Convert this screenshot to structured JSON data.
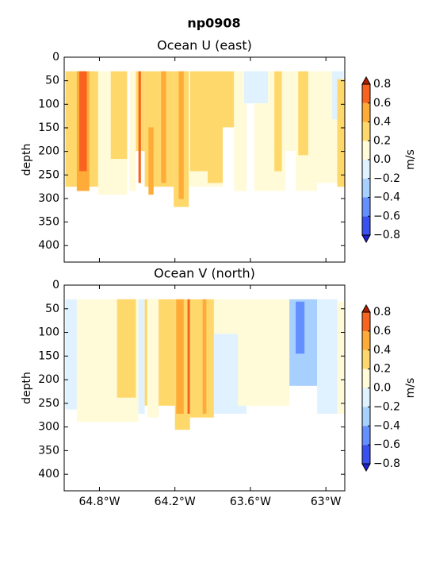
{
  "title": "np0908",
  "chart_data": [
    {
      "type": "contour",
      "title": "Ocean U (east)",
      "ylabel": "depth",
      "xlim": [
        -65.08,
        -62.85
      ],
      "ylim": [
        435,
        0
      ],
      "yticks": [
        0,
        50,
        100,
        150,
        200,
        250,
        300,
        350,
        400
      ],
      "xticks": [
        -64.8,
        -64.2,
        -63.6,
        -63.0
      ],
      "colorbar": {
        "label": "m/s",
        "ticks": [
          {
            "value": -0.8,
            "label": "−0.8"
          },
          {
            "value": -0.6,
            "label": "−0.6"
          },
          {
            "value": -0.4,
            "label": "−0.4"
          },
          {
            "value": -0.2,
            "label": "−0.2"
          },
          {
            "value": 0,
            "label": "0.0"
          },
          0.2,
          0.4,
          0.6,
          0.8
        ],
        "colors": [
          "#3a50f0",
          "#6490ff",
          "#a8d0ff",
          "#e0f1ff",
          "#fffbd8",
          "#ffd86c",
          "#ffab38",
          "#f86420"
        ],
        "under": "#2020d0",
        "over": "#b02000"
      },
      "cells": [
        {
          "lon": [
            -65.07,
            -64.81
          ],
          "depth": [
            30,
            275
          ],
          "value": 0.3
        },
        {
          "lon": [
            -64.98,
            -64.88
          ],
          "depth": [
            30,
            284
          ],
          "value": 0.5
        },
        {
          "lon": [
            -64.96,
            -64.9
          ],
          "depth": [
            30,
            242
          ],
          "value": 0.7
        },
        {
          "lon": [
            -64.81,
            -64.58
          ],
          "depth": [
            30,
            292
          ],
          "value": 0.1
        },
        {
          "lon": [
            -64.71,
            -64.58
          ],
          "depth": [
            30,
            216
          ],
          "value": 0.3
        },
        {
          "lon": [
            -64.56,
            -64.51
          ],
          "depth": [
            30,
            284
          ],
          "value": 0.1
        },
        {
          "lon": [
            -64.51,
            -64.44
          ],
          "depth": [
            30,
            199
          ],
          "value": 0.3
        },
        {
          "lon": [
            -64.49,
            -64.47
          ],
          "depth": [
            30,
            267
          ],
          "value": 0.7
        },
        {
          "lon": [
            -64.44,
            -64.21
          ],
          "depth": [
            30,
            275
          ],
          "value": 0.3
        },
        {
          "lon": [
            -64.41,
            -64.37
          ],
          "depth": [
            149,
            292
          ],
          "value": 0.5
        },
        {
          "lon": [
            -64.31,
            -64.27
          ],
          "depth": [
            30,
            267
          ],
          "value": 0.5
        },
        {
          "lon": [
            -64.21,
            -64.09
          ],
          "depth": [
            30,
            318
          ],
          "value": 0.3
        },
        {
          "lon": [
            -64.17,
            -64.13
          ],
          "depth": [
            30,
            301
          ],
          "value": 0.5
        },
        {
          "lon": [
            -64.09,
            -63.82
          ],
          "depth": [
            30,
            275
          ],
          "value": 0.1
        },
        {
          "lon": [
            -64.08,
            -63.94
          ],
          "depth": [
            30,
            242
          ],
          "value": 0.3
        },
        {
          "lon": [
            -63.94,
            -63.82
          ],
          "depth": [
            30,
            267
          ],
          "value": 0.3
        },
        {
          "lon": [
            -63.82,
            -63.73
          ],
          "depth": [
            30,
            149
          ],
          "value": 0.3
        },
        {
          "lon": [
            -63.73,
            -63.63
          ],
          "depth": [
            30,
            284
          ],
          "value": 0.1
        },
        {
          "lon": [
            -63.65,
            -63.46
          ],
          "depth": [
            30,
            98
          ],
          "value": -0.1
        },
        {
          "lon": [
            -63.57,
            -63.32
          ],
          "depth": [
            98,
            284
          ],
          "value": 0.1
        },
        {
          "lon": [
            -63.46,
            -63.24
          ],
          "depth": [
            30,
            199
          ],
          "value": 0.1
        },
        {
          "lon": [
            -63.41,
            -63.35
          ],
          "depth": [
            30,
            242
          ],
          "value": 0.3
        },
        {
          "lon": [
            -63.24,
            -63.07
          ],
          "depth": [
            30,
            284
          ],
          "value": 0.1
        },
        {
          "lon": [
            -63.22,
            -63.14
          ],
          "depth": [
            30,
            208
          ],
          "value": 0.3
        },
        {
          "lon": [
            -63.07,
            -62.91
          ],
          "depth": [
            30,
            267
          ],
          "value": 0.1
        },
        {
          "lon": [
            -62.95,
            -62.86
          ],
          "depth": [
            30,
            132
          ],
          "value": -0.1
        },
        {
          "lon": [
            -62.91,
            -62.84
          ],
          "depth": [
            47,
            275
          ],
          "value": 0.3
        }
      ]
    },
    {
      "type": "contour",
      "title": "Ocean V (north)",
      "ylabel": "depth",
      "xlim": [
        -65.08,
        -62.85
      ],
      "ylim": [
        435,
        0
      ],
      "yticks": [
        0,
        50,
        100,
        150,
        200,
        250,
        300,
        350,
        400
      ],
      "xticks": [
        {
          "value": -64.8,
          "label": "64.8°W"
        },
        {
          "value": -64.2,
          "label": "64.2°W"
        },
        {
          "value": -63.6,
          "label": "63.6°W"
        },
        {
          "value": -63.0,
          "label": "63°W"
        }
      ],
      "colorbar": {
        "label": "m/s",
        "ticks": [
          {
            "value": -0.8,
            "label": "−0.8"
          },
          {
            "value": -0.6,
            "label": "−0.6"
          },
          {
            "value": -0.4,
            "label": "−0.4"
          },
          {
            "value": -0.2,
            "label": "−0.2"
          },
          {
            "value": 0,
            "label": "0.0"
          },
          0.2,
          0.4,
          0.6,
          0.8
        ],
        "colors": [
          "#3a50f0",
          "#6490ff",
          "#a8d0ff",
          "#e0f1ff",
          "#fffbd8",
          "#ffd86c",
          "#ffab38",
          "#f86420"
        ],
        "under": "#2020d0",
        "over": "#b02000"
      },
      "cells": [
        {
          "lon": [
            -65.07,
            -64.98
          ],
          "depth": [
            30,
            263
          ],
          "value": -0.1
        },
        {
          "lon": [
            -64.98,
            -64.81
          ],
          "depth": [
            30,
            289
          ],
          "value": 0.1
        },
        {
          "lon": [
            -64.81,
            -64.49
          ],
          "depth": [
            30,
            289
          ],
          "value": 0.1
        },
        {
          "lon": [
            -64.66,
            -64.51
          ],
          "depth": [
            30,
            238
          ],
          "value": 0.3
        },
        {
          "lon": [
            -64.49,
            -64.44
          ],
          "depth": [
            30,
            272
          ],
          "value": -0.1
        },
        {
          "lon": [
            -64.44,
            -64.2
          ],
          "depth": [
            30,
            255
          ],
          "value": 0.3
        },
        {
          "lon": [
            -64.42,
            -64.33
          ],
          "depth": [
            30,
            280
          ],
          "value": 0.1
        },
        {
          "lon": [
            -64.2,
            -64.08
          ],
          "depth": [
            30,
            306
          ],
          "value": 0.3
        },
        {
          "lon": [
            -64.19,
            -64.13
          ],
          "depth": [
            30,
            272
          ],
          "value": 0.5
        },
        {
          "lon": [
            -64.1,
            -64.08
          ],
          "depth": [
            30,
            272
          ],
          "value": 0.7
        },
        {
          "lon": [
            -64.08,
            -63.89
          ],
          "depth": [
            30,
            280
          ],
          "value": 0.3
        },
        {
          "lon": [
            -63.98,
            -63.95
          ],
          "depth": [
            30,
            272
          ],
          "value": 0.5
        },
        {
          "lon": [
            -63.89,
            -63.7
          ],
          "depth": [
            30,
            103
          ],
          "value": 0.1
        },
        {
          "lon": [
            -63.89,
            -63.63
          ],
          "depth": [
            103,
            272
          ],
          "value": -0.1
        },
        {
          "lon": [
            -63.7,
            -63.29
          ],
          "depth": [
            30,
            255
          ],
          "value": 0.1
        },
        {
          "lon": [
            -63.29,
            -63.07
          ],
          "depth": [
            30,
            213
          ],
          "value": -0.3
        },
        {
          "lon": [
            -63.24,
            -63.17
          ],
          "depth": [
            35,
            145
          ],
          "value": -0.5
        },
        {
          "lon": [
            -63.07,
            -62.91
          ],
          "depth": [
            30,
            272
          ],
          "value": -0.1
        },
        {
          "lon": [
            -62.91,
            -62.84
          ],
          "depth": [
            35,
            272
          ],
          "value": 0.1
        }
      ]
    }
  ]
}
